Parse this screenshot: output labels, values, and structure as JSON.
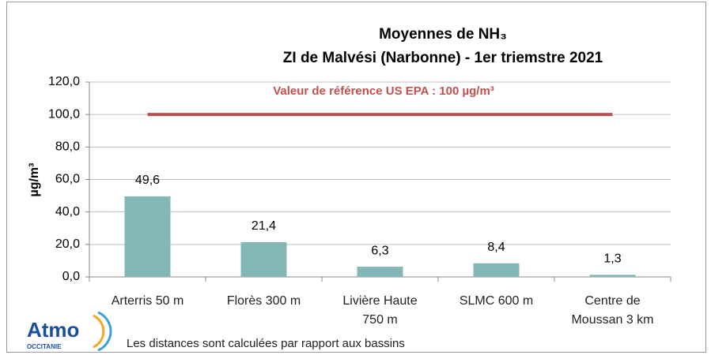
{
  "chart_data": {
    "type": "bar",
    "title": [
      "Moyennes de NH₃",
      "ZI  de Malvési (Narbonne) - 1er triemstre 2021"
    ],
    "y_label": "µg/m³",
    "categories": [
      "Arterris 50 m",
      "Florès 300 m",
      "Livière Haute 750 m",
      "SLMC 600 m",
      "Centre de Moussan 3 km"
    ],
    "values": [
      49.6,
      21.4,
      6.3,
      8.4,
      1.3
    ],
    "value_labels": [
      "49,6",
      "21,4",
      "6,3",
      "8,4",
      "1,3"
    ],
    "color": "#84b8b8",
    "ylim": [
      0,
      120
    ],
    "yticks": [
      {
        "value": 0,
        "label": "0,0"
      },
      {
        "value": 20,
        "label": "20,0"
      },
      {
        "value": 40,
        "label": "40,0"
      },
      {
        "value": 60,
        "label": "60,0"
      },
      {
        "value": 80,
        "label": "80,0"
      },
      {
        "value": 100,
        "label": "100,0"
      },
      {
        "value": 120,
        "label": "120,0"
      }
    ],
    "grid": true,
    "reference_line": {
      "value": 100,
      "label": "Valeur de référence US EPA :  100 µg/m³",
      "color": "#c0504d"
    },
    "footnote": "Les distances sont calculées par rapport aux bassins",
    "logo": {
      "name": "Atmo",
      "region": "OCCITANIE"
    }
  }
}
